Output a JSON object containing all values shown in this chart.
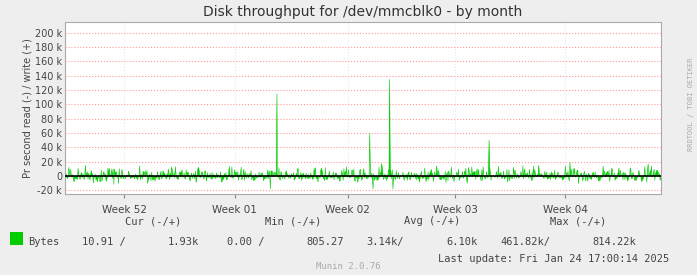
{
  "title": "Disk throughput for /dev/mmcblk0 - by month",
  "ylabel": "Pr second read (-) / write (+)",
  "xlabel_ticks": [
    "Week 52",
    "Week 01",
    "Week 02",
    "Week 03",
    "Week 04"
  ],
  "xlabel_tick_positions": [
    0.1,
    0.285,
    0.475,
    0.655,
    0.84
  ],
  "ylim": [
    -25000,
    215000
  ],
  "yticks": [
    -20000,
    0,
    20000,
    40000,
    60000,
    80000,
    100000,
    120000,
    140000,
    160000,
    180000,
    200000
  ],
  "ytick_labels": [
    "-20 k",
    "0",
    "20 k",
    "40 k",
    "60 k",
    "80 k",
    "100 k",
    "120 k",
    "140 k",
    "160 k",
    "180 k",
    "200 k"
  ],
  "line_color": "#00cc00",
  "zero_line_color": "#000000",
  "grid_color_major": "#ff9999",
  "grid_color_minor": "#ddddff",
  "background_color": "#eeeeee",
  "plot_background": "#ffffff",
  "title_color": "#333333",
  "legend_label": "Bytes",
  "legend_color": "#00cc00",
  "last_update": "Last update: Fri Jan 24 17:00:14 2025",
  "munin_version": "Munin 2.0.76",
  "rrdtool_label": "RRDTOOL / TOBI OETIKER",
  "num_points": 900,
  "seed": 42,
  "spike_indices": [
    320,
    460,
    490,
    640
  ],
  "spike_values": [
    115000,
    60000,
    135000,
    50000
  ],
  "neg_spike_indices": [
    310,
    465,
    495
  ],
  "neg_spike_values": [
    -18000,
    -18000,
    -18000
  ],
  "cur_neg": "10.91",
  "cur_pos": "1.93k",
  "min_neg": "0.00",
  "min_pos": "805.27",
  "avg_neg": "3.14k/",
  "avg_pos": "6.10k",
  "max_neg": "461.82k/",
  "max_pos": "814.22k"
}
